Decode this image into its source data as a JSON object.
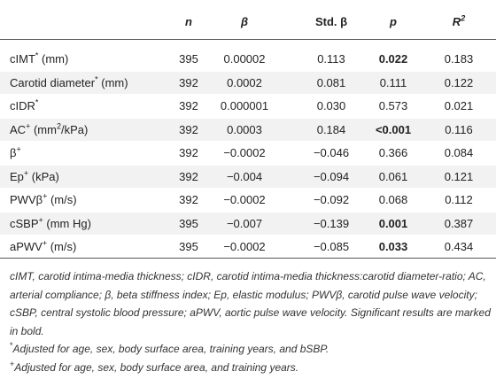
{
  "header": {
    "n": "n",
    "beta": "β",
    "std_beta": "Std. β",
    "p": "p",
    "r2": "R",
    "r2_sup": "2"
  },
  "rows": [
    {
      "label": "cIMT",
      "sup": "*",
      "unit": " (mm)",
      "n": "395",
      "beta": "0.00002",
      "std_beta": "0.113",
      "p": "0.022",
      "p_bold": true,
      "r2": "0.183"
    },
    {
      "label": "Carotid diameter",
      "sup": "*",
      "unit": " (mm)",
      "n": "392",
      "beta": "0.0002",
      "std_beta": "0.081",
      "p": "0.111",
      "p_bold": false,
      "r2": "0.122"
    },
    {
      "label": "cIDR",
      "sup": "*",
      "unit": "",
      "n": "392",
      "beta": "0.000001",
      "std_beta": "0.030",
      "p": "0.573",
      "p_bold": false,
      "r2": "0.021"
    },
    {
      "label": "AC",
      "sup": "+",
      "unit": " (mm",
      "unit_sup": "2",
      "unit_tail": "/kPa)",
      "n": "392",
      "beta": "0.0003",
      "std_beta": "0.184",
      "p": "<0.001",
      "p_bold": true,
      "r2": "0.116"
    },
    {
      "label": "β",
      "sup": "+",
      "unit": "",
      "n": "392",
      "beta": "−0.0002",
      "std_beta": "−0.046",
      "p": "0.366",
      "p_bold": false,
      "r2": "0.084"
    },
    {
      "label": "Ep",
      "sup": "+",
      "unit": " (kPa)",
      "n": "392",
      "beta": "−0.004",
      "std_beta": "−0.094",
      "p": "0.061",
      "p_bold": false,
      "r2": "0.121"
    },
    {
      "label": "PWVβ",
      "sup": "+",
      "unit": " (m/s)",
      "n": "392",
      "beta": "−0.0002",
      "std_beta": "−0.092",
      "p": "0.068",
      "p_bold": false,
      "r2": "0.112"
    },
    {
      "label": "cSBP",
      "sup": "+",
      "unit": " (mm Hg)",
      "n": "395",
      "beta": "−0.007",
      "std_beta": "−0.139",
      "p": "0.001",
      "p_bold": true,
      "r2": "0.387"
    },
    {
      "label": "aPWV",
      "sup": "+",
      "unit": " (m/s)",
      "n": "395",
      "beta": "−0.0002",
      "std_beta": "−0.085",
      "p": "0.033",
      "p_bold": true,
      "r2": "0.434"
    }
  ],
  "footnotes": {
    "abbreviations": "cIMT, carotid intima-media thickness; cIDR, carotid intima-media thickness:carotid diameter-ratio; AC, arterial compliance; β, beta stiffness index; Ep, elastic modulus; PWVβ, carotid pulse wave velocity; cSBP, central systolic blood pressure; aPWV, aortic pulse wave velocity. Significant results are marked in bold.",
    "star_mark": "*",
    "star_text": "Adjusted for age, sex, body surface area, training years, and bSBP.",
    "plus_mark": "+",
    "plus_text": "Adjusted for age, sex, body surface area, and training years."
  }
}
